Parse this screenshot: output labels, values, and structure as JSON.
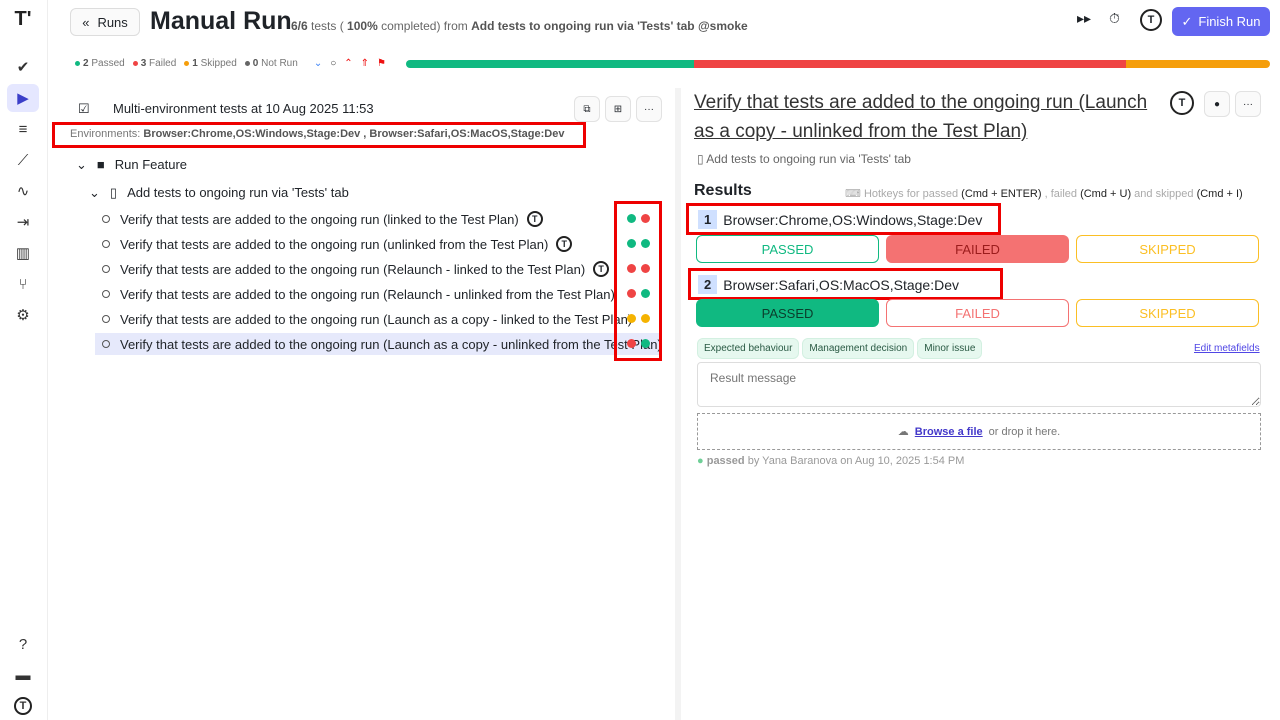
{
  "sidebar": {
    "items": [
      {
        "name": "logo",
        "glyph": "T'"
      },
      {
        "name": "check",
        "glyph": "✔"
      },
      {
        "name": "runs",
        "glyph": "▶"
      },
      {
        "name": "plans",
        "glyph": "≡"
      },
      {
        "name": "steps",
        "glyph": "⟋"
      },
      {
        "name": "pulse",
        "glyph": "∿"
      },
      {
        "name": "import",
        "glyph": "⇥"
      },
      {
        "name": "reports",
        "glyph": "▥"
      },
      {
        "name": "branches",
        "glyph": "⑂"
      },
      {
        "name": "settings",
        "glyph": "⚙"
      }
    ],
    "help": "?",
    "docs": "▬",
    "avatar": "T"
  },
  "header": {
    "back_label": "Runs",
    "title": "Manual Run",
    "tests": "6/6",
    "tests_word": "tests (",
    "percent": "100%",
    "completed": "completed) from",
    "source": "Add tests to ongoing run via 'Tests' tab @smoke",
    "finish_label": "Finish Run",
    "avatar": "T"
  },
  "stats": {
    "passed": "2",
    "passed_label": "Passed",
    "failed": "3",
    "failed_label": "Failed",
    "skipped": "1",
    "skipped_label": "Skipped",
    "notrun": "0",
    "notrun_label": "Not Run"
  },
  "progress": {
    "passed": 2,
    "failed": 3,
    "skipped": 1,
    "colors": {
      "passed": "#10b981",
      "failed": "#ef4444",
      "skipped": "#f59e0b"
    }
  },
  "left": {
    "run_name": "Multi-environment tests at 10 Aug 2025 11:53",
    "env_label": "Environments:",
    "env_values": "Browser:Chrome,OS:Windows,Stage:Dev , Browser:Safari,OS:MacOS,Stage:Dev",
    "folder": "Run Feature",
    "suite": "Add tests to ongoing run via 'Tests' tab",
    "tests": [
      {
        "title": "Verify that tests are added to the ongoing run (linked to the Test Plan)",
        "auto": true,
        "status": [
          "passed",
          "failed"
        ]
      },
      {
        "title": "Verify that tests are added to the ongoing run (unlinked from the Test Plan)",
        "auto": true,
        "status": [
          "passed",
          "passed"
        ]
      },
      {
        "title": "Verify that tests are added to the ongoing run (Relaunch - linked to the Test Plan)",
        "auto": true,
        "status": [
          "failed",
          "failed"
        ]
      },
      {
        "title": "Verify that tests are added to the ongoing run (Relaunch - unlinked from the Test Plan)",
        "auto": false,
        "status": [
          "failed",
          "passed"
        ]
      },
      {
        "title": "Verify that tests are added to the ongoing run (Launch as a copy - linked to the Test Plan)",
        "auto": false,
        "status": [
          "skipped",
          "skipped"
        ]
      },
      {
        "title": "Verify that tests are added to the ongoing run (Launch as a copy - unlinked from the Test Plan)",
        "auto": false,
        "status": [
          "failed",
          "passed"
        ]
      }
    ]
  },
  "right": {
    "title": "Verify that tests are added to the ongoing run (Launch as a copy - unlinked from the Test Plan)",
    "suite": "Add tests to ongoing run via 'Tests' tab",
    "results_label": "Results",
    "hotkeys": {
      "p1": "Hotkeys for passed",
      "k1": "(Cmd + ENTER)",
      "p2": ", failed",
      "k2": "(Cmd + U)",
      "p3": "and skipped",
      "k3": "(Cmd + I)"
    },
    "envs": [
      {
        "num": "1",
        "name": "Browser:Chrome,OS:Windows,Stage:Dev",
        "selected": "failed"
      },
      {
        "num": "2",
        "name": "Browser:Safari,OS:MacOS,Stage:Dev",
        "selected": "passed"
      }
    ],
    "buttons": {
      "passed": "PASSED",
      "failed": "FAILED",
      "skipped": "SKIPPED"
    },
    "tags": [
      "Expected behaviour",
      "Management decision",
      "Minor issue"
    ],
    "edit_metafields": "Edit metafields",
    "message_placeholder": "Result message",
    "browse": "Browse a file",
    "drop": "or drop it here.",
    "history": {
      "status": "passed",
      "by": "by Yana Baranova on Aug 10, 2025 1:54 PM"
    }
  }
}
